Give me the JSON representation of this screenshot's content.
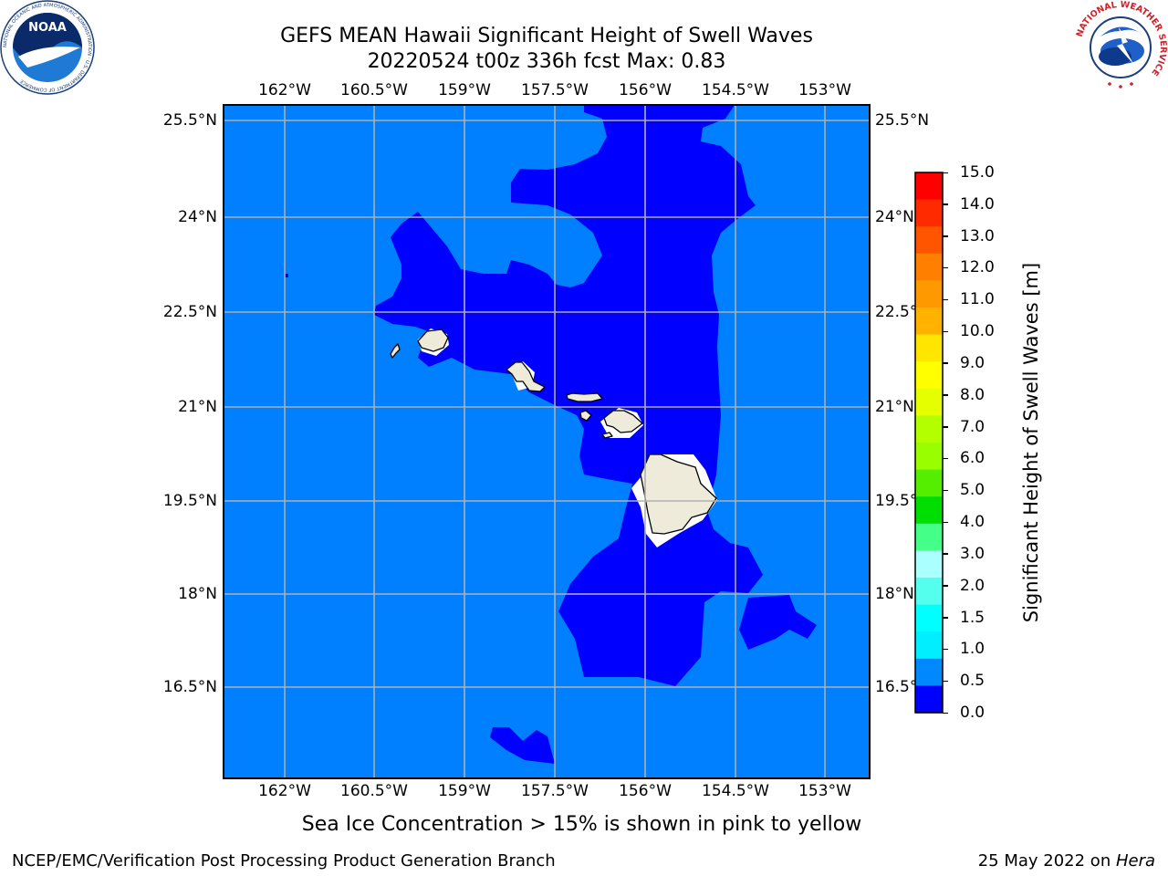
{
  "title": {
    "line1": "GEFS MEAN Hawaii Significant Height of Swell Waves",
    "line2": "20220524 t00z 336h fcst   Max: 0.83"
  },
  "map": {
    "lon_ticks": [
      "162°W",
      "160.5°W",
      "159°W",
      "157.5°W",
      "156°W",
      "154.5°W",
      "153°W"
    ],
    "lat_ticks": [
      "25.5°N",
      "24°N",
      "22.5°N",
      "21°N",
      "19.5°N",
      "18°N",
      "16.5°N"
    ],
    "colors": {
      "ocean_0_0_5": "#0000ff",
      "ocean_0_5_1_0": "#007fff",
      "land": "#eeebdb",
      "gridline": "#b0b0b0"
    }
  },
  "colorbar": {
    "label": "Significant Height of Swell Waves [m]",
    "ticks": [
      "15.0",
      "14.0",
      "13.0",
      "12.0",
      "11.0",
      "10.0",
      "9.0",
      "8.0",
      "7.0",
      "6.0",
      "5.0",
      "4.0",
      "3.0",
      "2.0",
      "1.5",
      "1.0",
      "0.5",
      "0.0"
    ],
    "colors_top_to_bottom": [
      "#ff0000",
      "#ff2a00",
      "#ff5500",
      "#ff7f00",
      "#ff9900",
      "#ffb300",
      "#ffe600",
      "#ffff00",
      "#e6ff00",
      "#b3ff00",
      "#99ff00",
      "#55ee00",
      "#00dd00",
      "#44ff88",
      "#aaffff",
      "#55ffee",
      "#00ffff",
      "#00eeff",
      "#0088ff",
      "#0000ff"
    ]
  },
  "caption": "Sea Ice Concentration > 15% is shown in pink to yellow",
  "footer": {
    "left": "NCEP/EMC/Verification Post Processing Product Generation Branch",
    "date": "25 May 2022 on ",
    "machine": "Hera"
  },
  "logos": {
    "left": "NOAA",
    "left_ring_text": "NATIONAL OCEANIC AND ATMOSPHERIC ADMINISTRATION · U.S. DEPARTMENT OF COMMERCE",
    "right_ring_text": "NATIONAL WEATHER SERVICE"
  }
}
